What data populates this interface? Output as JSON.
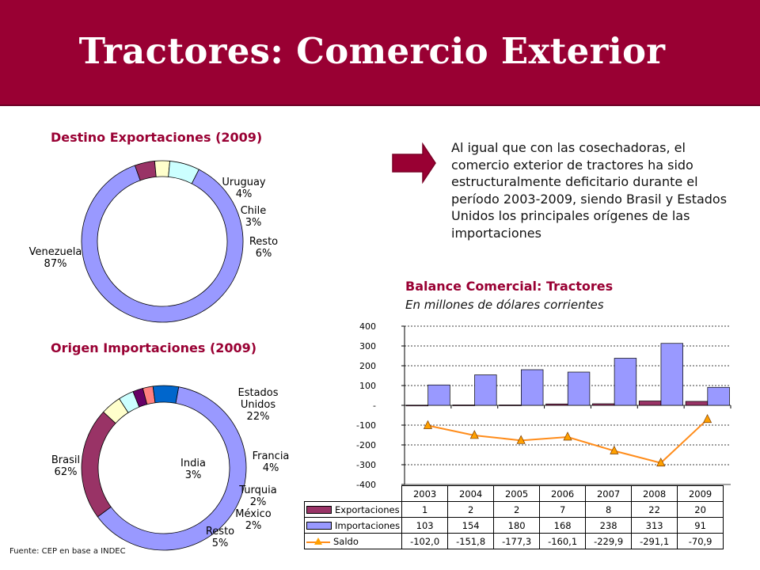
{
  "title": "Tractores: Comercio Exterior",
  "note": "Al igual que con las cosechadoras, el comercio exterior de tractores ha sido estructuralmente deficitario durante el período 2003-2009, siendo Brasil y Estados Unidos los principales orígenes de las importaciones",
  "source": "Fuente: CEP en base a INDEC",
  "colors": {
    "header": "#990033",
    "arrow": "#990033",
    "export_bar": "#993366",
    "import_bar": "#9999ff",
    "saldo_line": "#ff8c1a"
  },
  "chart_data": [
    {
      "type": "pie",
      "title": "Destino Exportaciones (2009)",
      "slices": [
        {
          "name": "Venezuela",
          "label": "87%",
          "value": 87,
          "color": "#9999ff"
        },
        {
          "name": "Uruguay",
          "label": "4%",
          "value": 4,
          "color": "#993366"
        },
        {
          "name": "Chile",
          "label": "3%",
          "value": 3,
          "color": "#ffffcc"
        },
        {
          "name": "Resto",
          "label": "6%",
          "value": 6,
          "color": "#ccffff"
        }
      ]
    },
    {
      "type": "pie",
      "title": "Origen Importaciones (2009)",
      "slices": [
        {
          "name": "Brasil",
          "label": "62%",
          "value": 62,
          "color": "#9999ff"
        },
        {
          "name": "Estados Unidos",
          "label": "22%",
          "value": 22,
          "color": "#993366"
        },
        {
          "name": "Francia",
          "label": "4%",
          "value": 4,
          "color": "#ffffcc"
        },
        {
          "name": "India",
          "label": "3%",
          "value": 3,
          "color": "#ccffff"
        },
        {
          "name": "Turquia",
          "label": "2%",
          "value": 2,
          "color": "#660066"
        },
        {
          "name": "México",
          "label": "2%",
          "value": 2,
          "color": "#ff8080"
        },
        {
          "name": "Resto",
          "label": "5%",
          "value": 5,
          "color": "#0066cc"
        }
      ]
    },
    {
      "type": "bar",
      "title": "Balance Comercial: Tractores",
      "subtitle": "En millones de dólares corrientes",
      "categories": [
        "2003",
        "2004",
        "2005",
        "2006",
        "2007",
        "2008",
        "2009"
      ],
      "ylim": [
        -400,
        400
      ],
      "yticks": [
        "400",
        "300",
        "200",
        "100",
        "-",
        "-100",
        "-200",
        "-300",
        "-400"
      ],
      "grid": true,
      "series": [
        {
          "name": "Exportaciones",
          "kind": "bar",
          "values": [
            1,
            2,
            2,
            7,
            8,
            22,
            20
          ],
          "labels": [
            "1",
            "2",
            "2",
            "7",
            "8",
            "22",
            "20"
          ]
        },
        {
          "name": "Importaciones",
          "kind": "bar",
          "values": [
            103,
            154,
            180,
            168,
            238,
            313,
            91
          ],
          "labels": [
            "103",
            "154",
            "180",
            "168",
            "238",
            "313",
            "91"
          ]
        },
        {
          "name": "Saldo",
          "kind": "line",
          "values": [
            -102.0,
            -151.8,
            -177.3,
            -160.1,
            -229.9,
            -291.1,
            -70.9
          ],
          "labels": [
            "-102,0",
            "-151,8",
            "-177,3",
            "-160,1",
            "-229,9",
            "-291,1",
            "-70,9"
          ]
        }
      ]
    }
  ]
}
